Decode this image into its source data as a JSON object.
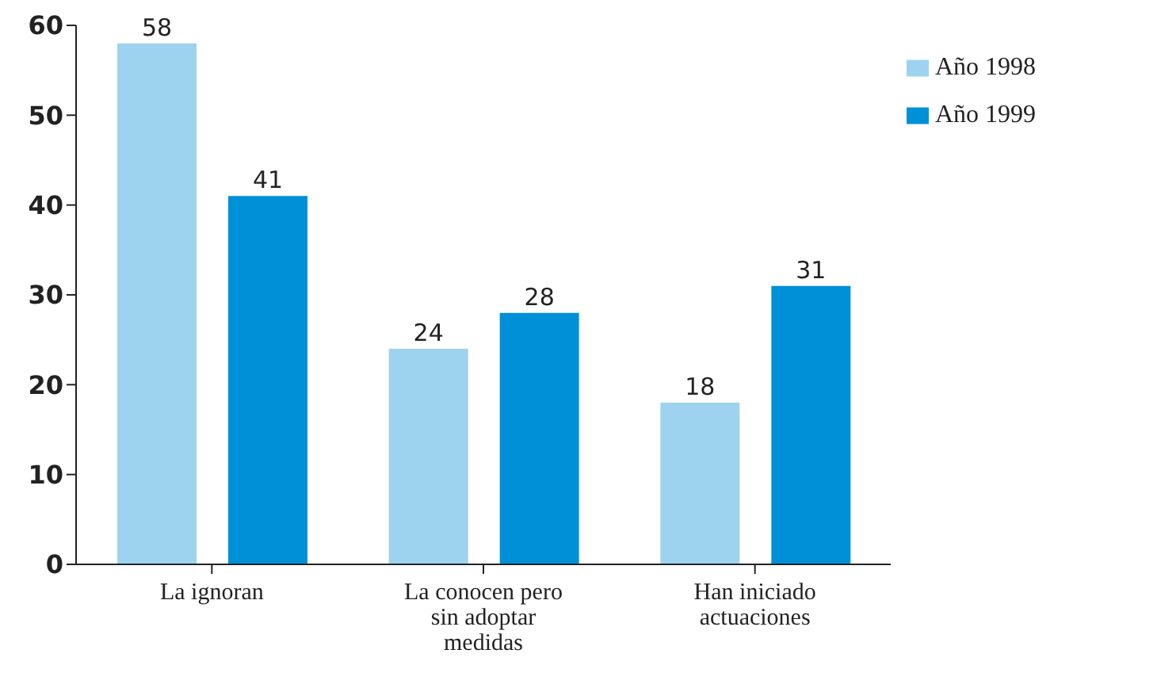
{
  "chart_data": {
    "type": "bar",
    "categories": [
      "La ignoran",
      "La conocen pero sin adoptar medidas",
      "Han iniciado actuaciones"
    ],
    "series": [
      {
        "name": "Año 1998",
        "color": "#9dd3ef",
        "values": [
          58,
          24,
          18
        ]
      },
      {
        "name": "Año 1999",
        "color": "#0090d8",
        "values": [
          41,
          28,
          31
        ]
      }
    ],
    "ylim": [
      0,
      60
    ],
    "yticks": [
      0,
      10,
      20,
      30,
      40,
      50,
      60
    ],
    "grid": false,
    "legend": "top right",
    "data_labels": true
  }
}
